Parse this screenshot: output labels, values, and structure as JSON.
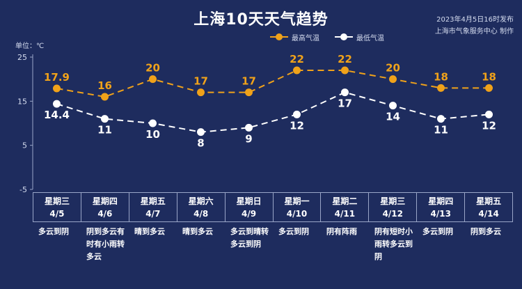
{
  "header": {
    "title": "上海10天天气趋势",
    "publish_time": "2023年4月5日16时发布",
    "publisher": "上海市气象服务中心 制作",
    "unit_label": "单位：℃"
  },
  "colors": {
    "background": "#1e2c5e",
    "high": "#f0a21a",
    "low": "#ffffff",
    "axis": "#9aa6c8"
  },
  "chart_data": {
    "type": "line",
    "categories": [
      "4/5",
      "4/6",
      "4/7",
      "4/8",
      "4/9",
      "4/10",
      "4/11",
      "4/12",
      "4/13",
      "4/14"
    ],
    "series": [
      {
        "name": "最高气温",
        "values": [
          17.9,
          16,
          20,
          17,
          17,
          22,
          22,
          20,
          18,
          18
        ],
        "color": "#f0a21a",
        "style": "dashed"
      },
      {
        "name": "最低气温",
        "values": [
          14.4,
          11,
          10,
          8,
          9,
          12,
          17,
          14,
          11,
          12
        ],
        "color": "#ffffff",
        "style": "dashed"
      }
    ],
    "yticks": [
      25,
      15,
      5,
      -5
    ],
    "ylim": [
      -5,
      25
    ],
    "ylabel": "单位：℃",
    "legend": "top-right",
    "grid": false
  },
  "days": [
    {
      "weekday": "星期三",
      "date": "4/5",
      "condition": "多云到阴"
    },
    {
      "weekday": "星期四",
      "date": "4/6",
      "condition": "阴到多云有时有小雨转多云"
    },
    {
      "weekday": "星期五",
      "date": "4/7",
      "condition": "晴到多云"
    },
    {
      "weekday": "星期六",
      "date": "4/8",
      "condition": "晴到多云"
    },
    {
      "weekday": "星期日",
      "date": "4/9",
      "condition": "多云到晴转多云到阴"
    },
    {
      "weekday": "星期一",
      "date": "4/10",
      "condition": "多云到阴"
    },
    {
      "weekday": "星期二",
      "date": "4/11",
      "condition": "阴有阵雨"
    },
    {
      "weekday": "星期三",
      "date": "4/12",
      "condition": "阴有短时小雨转多云到阴"
    },
    {
      "weekday": "星期四",
      "date": "4/13",
      "condition": "多云到阴"
    },
    {
      "weekday": "星期五",
      "date": "4/14",
      "condition": "阴到多云"
    }
  ]
}
